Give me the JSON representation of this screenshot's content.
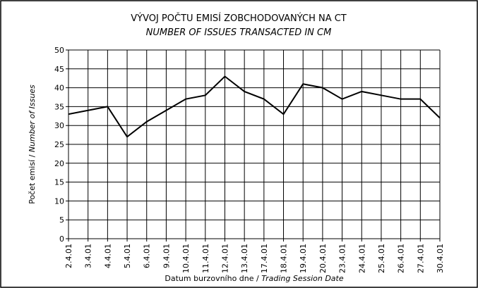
{
  "chart_data": {
    "type": "line",
    "title": "VÝVOJ POČTU EMISÍ ZOBCHODOVANÝCH NA CT",
    "subtitle": "NUMBER OF ISSUES TRANSACTED IN CM",
    "y_label": "Počet emisí /",
    "y_label_en": "Number of Issues",
    "x_label": "Datum burzovního dne /",
    "x_label_en": "Trading Session Date",
    "categories": [
      "2.4.01",
      "3.4.01",
      "4.4.01",
      "5.4.01",
      "6.4.01",
      "9.4.01",
      "10.4.01",
      "11.4.01",
      "12.4.01",
      "13.4.01",
      "17.4.01",
      "18.4.01",
      "19.4.01",
      "20.4.01",
      "23.4.01",
      "24.4.01",
      "25.4.01",
      "26.4.01",
      "27.4.01",
      "30.4.01"
    ],
    "values": [
      33,
      34,
      35,
      27,
      31,
      34,
      37,
      38,
      43,
      39,
      37,
      33,
      41,
      40,
      37,
      39,
      38,
      37,
      37,
      32
    ],
    "color": "#000000",
    "ylim": [
      0,
      50
    ],
    "yticks": [
      0,
      5,
      10,
      15,
      20,
      25,
      30,
      35,
      40,
      45,
      50
    ],
    "grid": true
  }
}
